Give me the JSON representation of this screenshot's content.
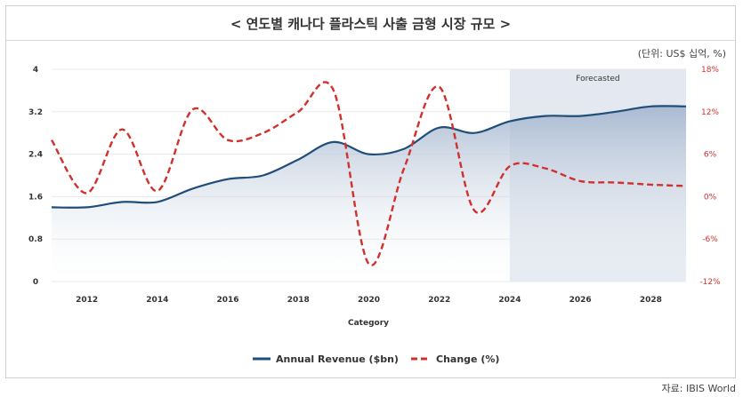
{
  "header": {
    "title": "< 연도별 캐나다 플라스틱 사출 금형 시장 규모 >",
    "unit_note": "(단위: US$ 십억, %)"
  },
  "source": "자료: IBIS World",
  "chart_data": {
    "type": "line",
    "title": "< 연도별 캐나다 플라스틱 사출 금형 시장 규모 >",
    "xlabel": "Category",
    "x": [
      2011,
      2012,
      2013,
      2014,
      2015,
      2016,
      2017,
      2018,
      2019,
      2020,
      2021,
      2022,
      2023,
      2024,
      2025,
      2026,
      2027,
      2028,
      2029
    ],
    "x_ticks": [
      "2012",
      "2014",
      "2016",
      "2018",
      "2020",
      "2022",
      "2024",
      "2026",
      "2028"
    ],
    "y_left": {
      "ticks": [
        "0",
        "0.8",
        "1.6",
        "2.4",
        "3.2",
        "4"
      ],
      "range": [
        0,
        4
      ]
    },
    "y_right": {
      "ticks": [
        "-12%",
        "-6%",
        "0%",
        "6%",
        "12%",
        "18%"
      ],
      "range": [
        -12,
        18
      ]
    },
    "forecast_region": {
      "label": "Forecasted",
      "from": 2024,
      "to": 2029
    },
    "series": [
      {
        "name": "Annual Revenue ($bn)",
        "axis": "left",
        "color": "#1f4e7a",
        "style": "solid",
        "values": [
          1.4,
          1.4,
          1.5,
          1.5,
          1.75,
          1.93,
          2.0,
          2.3,
          2.63,
          2.4,
          2.5,
          2.9,
          2.8,
          3.02,
          3.12,
          3.12,
          3.2,
          3.3,
          3.3
        ]
      },
      {
        "name": "Change (%)",
        "axis": "right",
        "color": "#d0312d",
        "style": "dashed",
        "values": [
          8.0,
          0.5,
          9.5,
          0.8,
          12.3,
          8.0,
          9.0,
          12.0,
          15.0,
          -9.5,
          4.0,
          15.5,
          -2.0,
          4.3,
          4.0,
          2.2,
          2.0,
          1.7,
          1.5
        ]
      }
    ],
    "legend": {
      "position": "bottom"
    },
    "grid": true
  }
}
